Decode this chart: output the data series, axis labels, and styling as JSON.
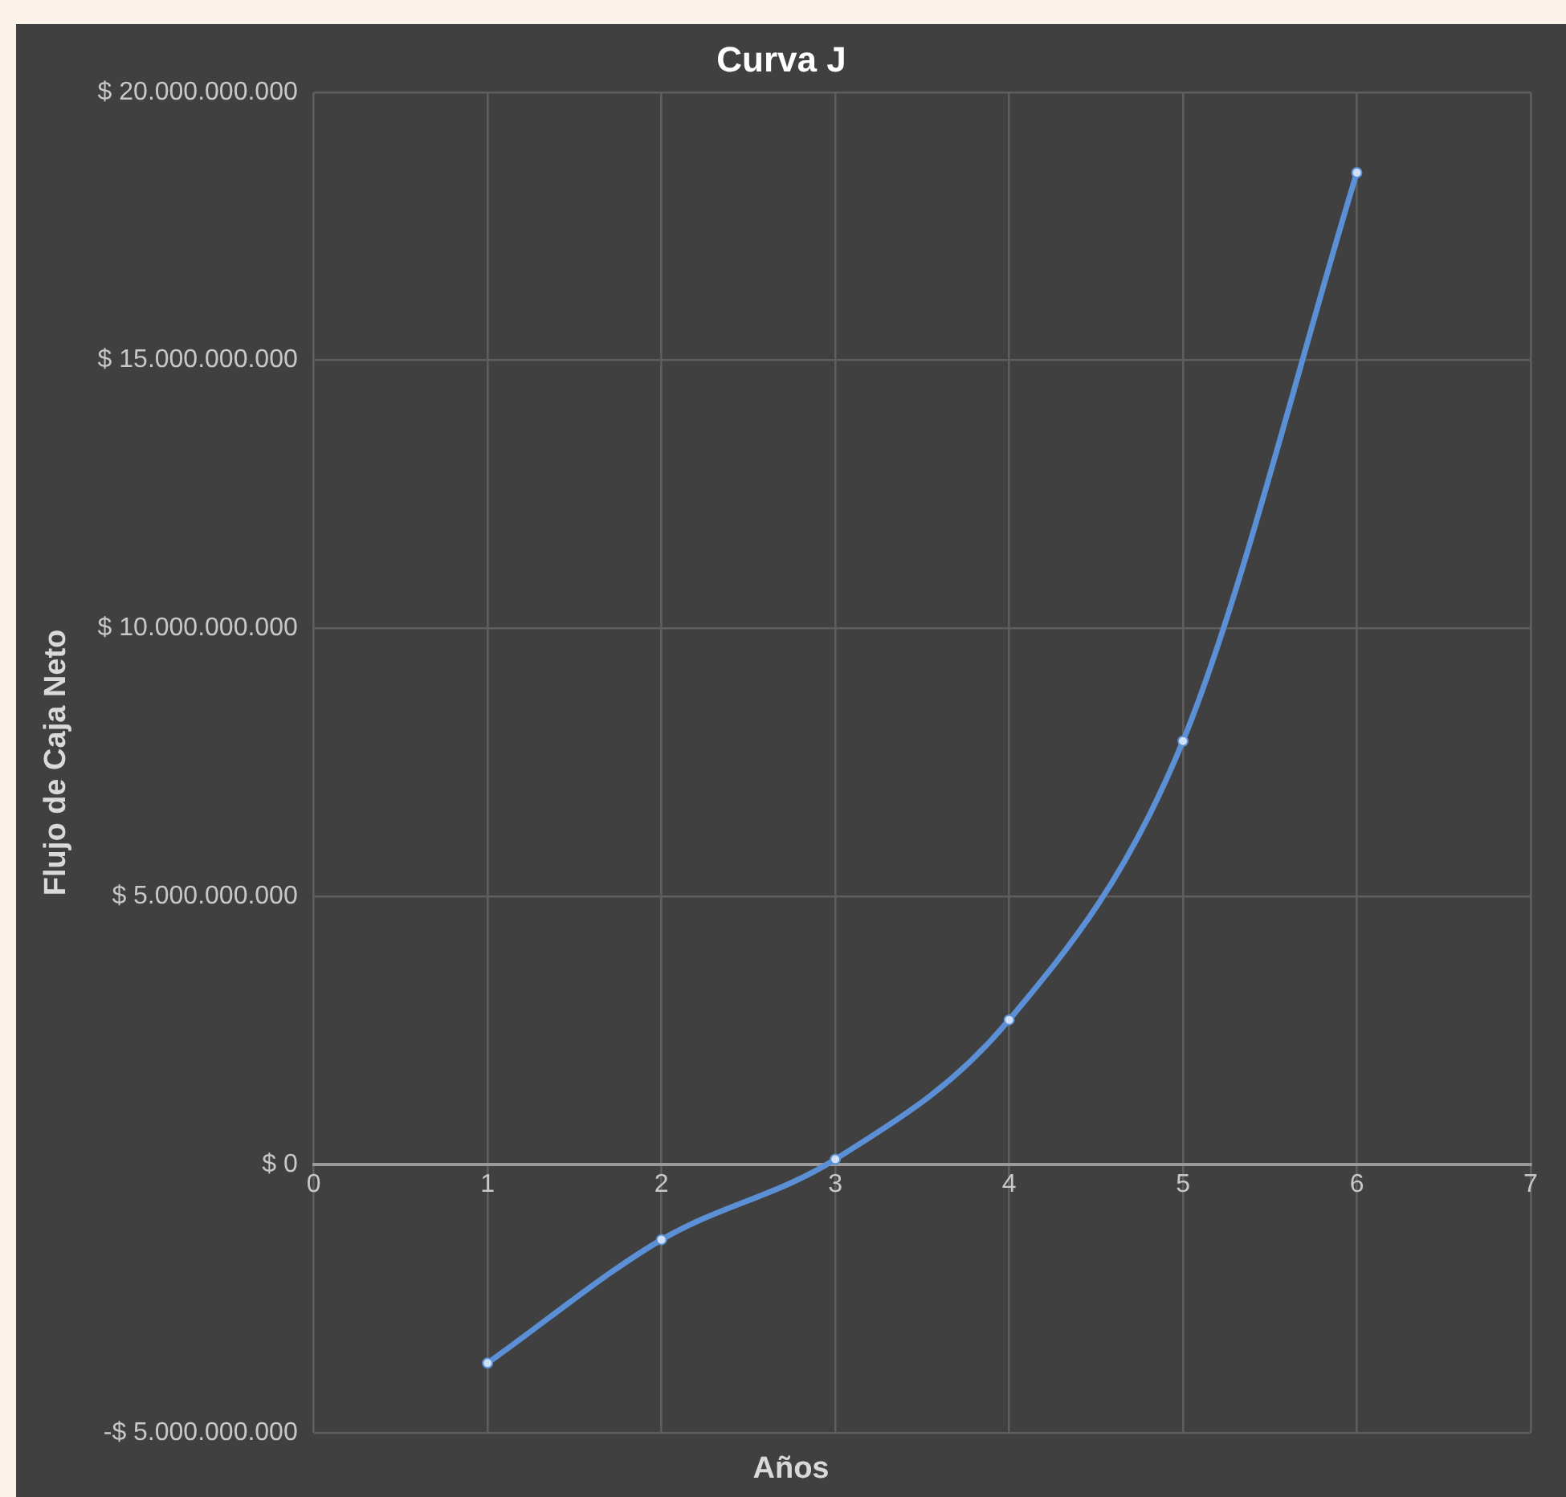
{
  "chart_data": {
    "type": "line",
    "title": "Curva J",
    "xlabel": "Años",
    "ylabel": "Flujo de Caja Neto",
    "x": [
      1,
      2,
      3,
      4,
      5,
      6
    ],
    "series": [
      {
        "color": "#5b8fd6",
        "values": [
          -3700000000,
          -1400000000,
          100000000,
          2700000000,
          7900000000,
          18500000000
        ]
      }
    ],
    "xlim": [
      0,
      7
    ],
    "xticks": [
      0,
      1,
      2,
      3,
      4,
      5,
      6,
      7
    ],
    "ylim": [
      -5000000000,
      20000000000
    ],
    "yticks": [
      {
        "value": -5000000000,
        "label": "-$ 5.000.000.000"
      },
      {
        "value": 0,
        "label": "$ 0"
      },
      {
        "value": 5000000000,
        "label": "$ 5.000.000.000"
      },
      {
        "value": 10000000000,
        "label": "$ 10.000.000.000"
      },
      {
        "value": 15000000000,
        "label": "$ 15.000.000.000"
      },
      {
        "value": 20000000000,
        "label": "$ 20.000.000.000"
      }
    ],
    "grid": true,
    "legend": false,
    "marker": "circle",
    "line_style": "solid"
  }
}
